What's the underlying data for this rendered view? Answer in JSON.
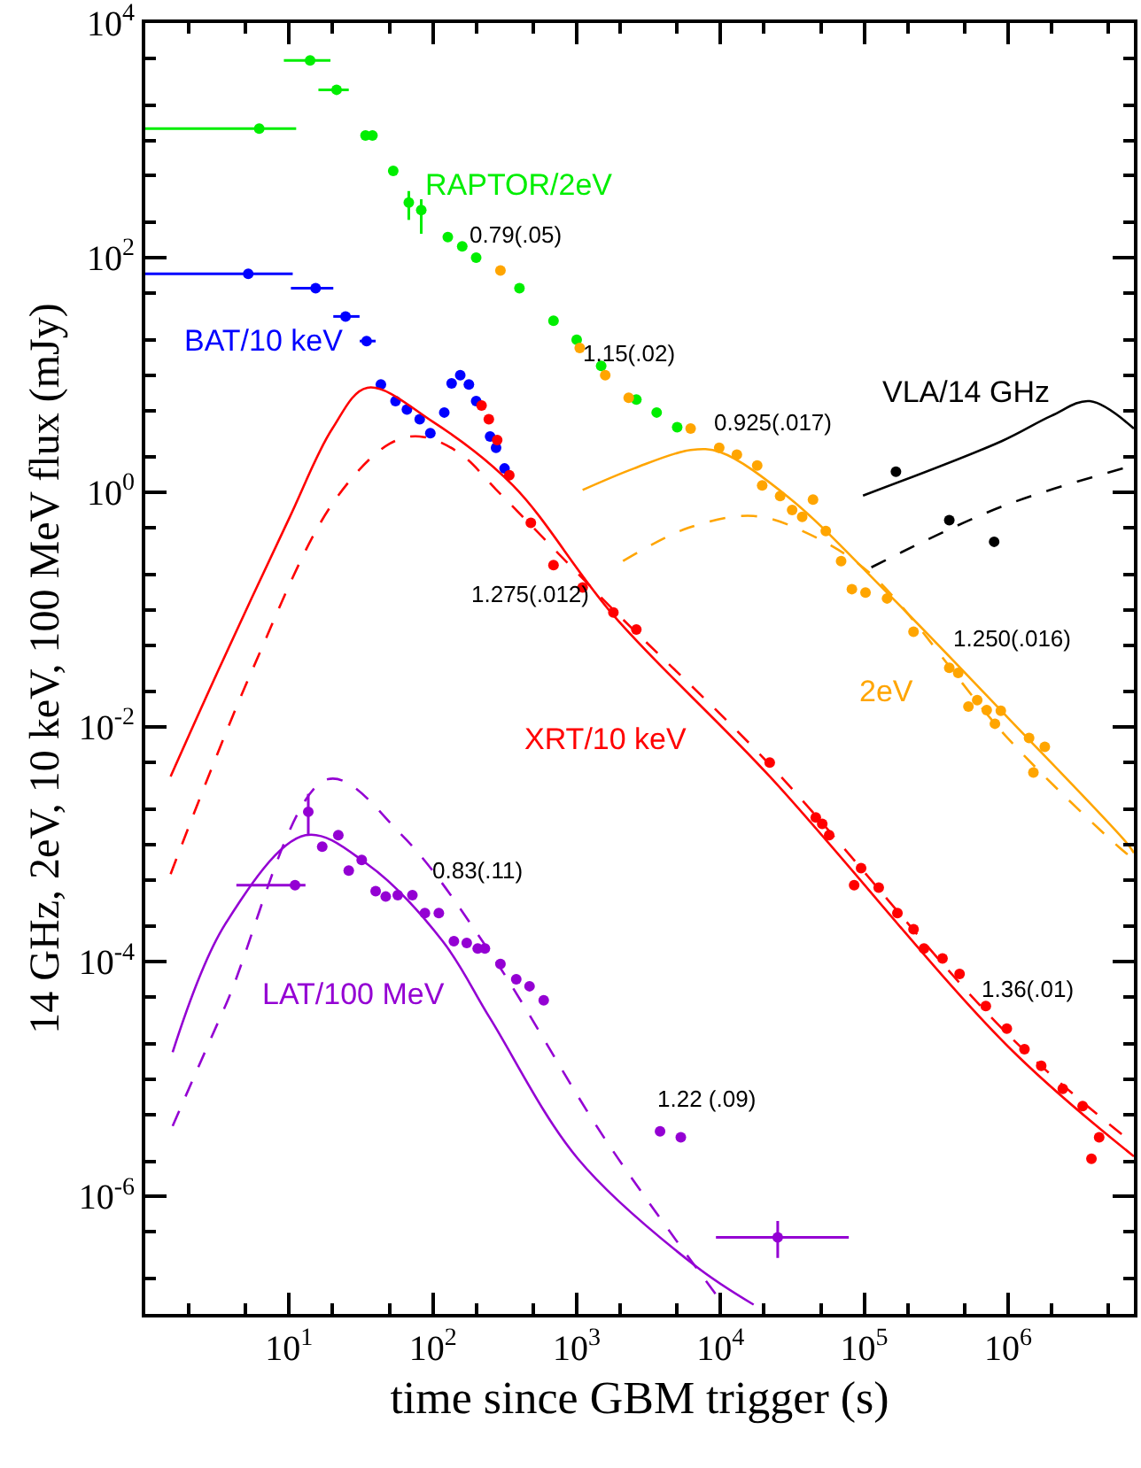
{
  "chart_data": {
    "type": "scatter",
    "xlabel": "time since GBM trigger (s)",
    "ylabel": "14 GHz, 2eV, 10 keV, 100 MeV flux (mJy)",
    "log": "xy",
    "grid": false,
    "legend": "left",
    "marker": "circle",
    "xlim": [
      1,
      7500000
    ],
    "ylim": [
      1e-07,
      10000
    ],
    "xticks": [
      {
        "value": 10,
        "label": "10$^{1}$"
      },
      {
        "value": 100,
        "label": "10$^{2}$"
      },
      {
        "value": 1000,
        "label": "10$^{3}$"
      },
      {
        "value": 10000,
        "label": "10$^{4}$"
      },
      {
        "value": 100000,
        "label": "10$^{5}$"
      },
      {
        "value": 1000000,
        "label": "10$^{6}$"
      }
    ],
    "yticks": [
      {
        "value": 1e-06,
        "label": "10$^{-6}$"
      },
      {
        "value": 0.0001,
        "label": "10$^{-4}$"
      },
      {
        "value": 0.01,
        "label": "10$^{-2}$"
      },
      {
        "value": 1,
        "label": "10$^{0}$"
      },
      {
        "value": 100,
        "label": "10$^{2}$"
      },
      {
        "value": 10000,
        "label": "10$^{4}$"
      }
    ],
    "series": [
      {
        "name": "RAPTOR/2eV",
        "color": "#00ee00",
        "x": [
          6.2,
          14,
          21.4,
          34,
          38,
          53,
          68,
          83,
          127,
          160,
          200,
          295,
          400,
          690,
          1000,
          1480,
          2600,
          3600,
          5000
        ],
        "values": [
          1260,
          4800,
          2700,
          1100,
          1100,
          550,
          295,
          255,
          150,
          125,
          100,
          null,
          55,
          29,
          20,
          12,
          6.2,
          4.8,
          3.6
        ],
        "xerrors": [
          [
            1,
            11.2
          ],
          [
            9.2,
            19.4
          ],
          [
            16,
            26
          ],
          null,
          null,
          null,
          null,
          null,
          null,
          null,
          null,
          null,
          null,
          null,
          null,
          null,
          null,
          null,
          null
        ],
        "errors": [
          null,
          null,
          null,
          null,
          null,
          null,
          [
            210,
            370
          ],
          [
            160,
            315
          ],
          null,
          null,
          null,
          null,
          null,
          null,
          null,
          null,
          null,
          null,
          null
        ]
      },
      {
        "name": "BAT/10 keV",
        "color": "#0000ff",
        "x": [
          5.2,
          15.3,
          24.7,
          34.6,
          43.5,
          55,
          66,
          81,
          96,
          120,
          135,
          155,
          178,
          200,
          250,
          275,
          315
        ],
        "values": [
          73,
          55,
          31.6,
          19.5,
          8.3,
          6,
          5.1,
          4.2,
          3.2,
          4.8,
          8.5,
          10,
          8.3,
          6,
          3,
          2.4,
          1.6
        ],
        "xerrors": [
          [
            1,
            10.6
          ],
          [
            10.3,
            20.3
          ],
          [
            20.3,
            30.9
          ],
          [
            31,
            40
          ],
          null,
          null,
          null,
          null,
          null,
          null,
          null,
          null,
          null,
          null,
          null,
          null,
          null
        ]
      },
      {
        "name": "XRT/10 keV",
        "color": "#ff0000",
        "x": [
          218,
          245,
          280,
          340,
          480,
          690,
          1100,
          1800,
          2600,
          22000,
          46000,
          51000,
          57000,
          85000,
          95000,
          126000,
          170000,
          220000,
          260000,
          350000,
          460000,
          700000,
          980000,
          1300000,
          1700000,
          2400000,
          3300000,
          3800000,
          4300000
        ],
        "values": [
          5.5,
          4.2,
          2.8,
          1.4,
          0.55,
          0.24,
          0.155,
          0.095,
          0.068,
          0.005,
          0.0017,
          0.0015,
          0.0012,
          0.00045,
          0.00063,
          0.00043,
          0.00026,
          0.00019,
          0.00013,
          0.000107,
          7.9e-05,
          4.2e-05,
          2.7e-05,
          1.8e-05,
          1.3e-05,
          8.3e-06,
          5.9e-06,
          2.1e-06,
          3.2e-06
        ]
      },
      {
        "name": "2eV",
        "color": "#ffa500",
        "x": [
          295,
          1050,
          1580,
          2300,
          6200,
          9800,
          13000,
          18000,
          19500,
          26000,
          31500,
          37000,
          44000,
          54000,
          69000,
          82000,
          102000,
          144000,
          220000,
          390000,
          450000,
          530000,
          610000,
          710000,
          810000,
          890000,
          1400000,
          1500000,
          1800000
        ],
        "values": [
          78,
          17,
          10,
          6.4,
          3.5,
          2.4,
          2.1,
          1.7,
          1.15,
          0.93,
          0.71,
          0.62,
          0.87,
          0.47,
          0.26,
          0.15,
          0.14,
          0.125,
          0.065,
          0.032,
          0.029,
          0.015,
          0.017,
          0.014,
          0.0107,
          0.0138,
          0.0081,
          0.0041,
          0.0068
        ]
      },
      {
        "name": "VLA/14 GHz",
        "color": "#000000",
        "x": [
          166000,
          390000,
          800000
        ],
        "values": [
          1.5,
          0.58,
          0.38
        ]
      },
      {
        "name": "LAT/100 MeV",
        "color": "#9400d3",
        "x": [
          11,
          13.6,
          17,
          22,
          26,
          32,
          40,
          47,
          57,
          72,
          88,
          110,
          140,
          172,
          205,
          230,
          295,
          380,
          470,
          590,
          3800,
          5300,
          25000
        ],
        "values": [
          0.00045,
          0.0019,
          0.00096,
          0.0012,
          0.0006,
          0.00074,
          0.0004,
          0.00036,
          0.00037,
          0.00037,
          0.00026,
          0.00026,
          0.00015,
          0.000145,
          0.00013,
          0.00013,
          9.6e-05,
          7.1e-05,
          6.2e-05,
          4.7e-05,
          3.6e-06,
          3.2e-06,
          4.5e-07
        ],
        "xerrors": [
          [
            4.3,
            13
          ],
          null,
          null,
          null,
          null,
          null,
          null,
          null,
          null,
          null,
          null,
          null,
          null,
          null,
          null,
          null,
          null,
          null,
          null,
          null,
          null,
          null,
          [
            9300,
            78000
          ]
        ],
        "errors": [
          null,
          [
            0.0012,
            0.0027
          ],
          null,
          null,
          null,
          null,
          null,
          null,
          null,
          null,
          null,
          null,
          null,
          null,
          null,
          null,
          null,
          null,
          null,
          null,
          null,
          null,
          [
            3e-07,
            6.2e-07
          ]
        ]
      },
      {
        "type": "line",
        "marker": "none",
        "color": "#ff0000",
        "line_style": "solid",
        "x": [
          1.5,
          3.2,
          10,
          20,
          35,
          100,
          360,
          1800,
          22000,
          1000000,
          7500000
        ],
        "values": [
          0.0038,
          0.03,
          0.6,
          3.5,
          7.8,
          4,
          1.15,
          0.09,
          0.0038,
          1.9e-05,
          2.2e-06
        ]
      },
      {
        "type": "line",
        "marker": "none",
        "color": "#ff0000",
        "line_style": "dashed",
        "x": [
          1.5,
          5.5,
          20,
          50,
          81,
          150,
          300,
          1800,
          22000,
          1000000,
          7500000
        ],
        "values": [
          0.00056,
          0.03,
          0.8,
          2.6,
          3,
          2.2,
          0.95,
          0.1,
          0.0048,
          2.4e-05,
          2.8e-06
        ]
      },
      {
        "type": "line",
        "marker": "none",
        "color": "#ffa500",
        "line_style": "solid",
        "x": [
          1100,
          2500,
          6200,
          10000,
          30000,
          140000,
          1000000,
          6600000,
          7500000
        ],
        "values": [
          1.05,
          1.6,
          2.3,
          2.2,
          0.9,
          0.145,
          0.012,
          0.00105,
          0.00085
        ]
      },
      {
        "type": "line",
        "marker": "none",
        "color": "#ffa500",
        "line_style": "dashed",
        "x": [
          2100,
          6000,
          17000,
          40000,
          112000,
          1000000,
          5900000,
          7500000
        ],
        "values": [
          0.26,
          0.5,
          0.63,
          0.45,
          0.2,
          0.008,
          0.00095,
          0.00075
        ]
      },
      {
        "type": "line",
        "marker": "none",
        "color": "#000000",
        "line_style": "solid",
        "x": [
          98000,
          910000,
          2000000,
          3700000,
          7500000
        ],
        "values": [
          0.94,
          2.75,
          4.5,
          6,
          3.5
        ]
      },
      {
        "type": "line",
        "marker": "none",
        "color": "#000000",
        "line_style": "dashed",
        "x": [
          112000,
          910000,
          7500000
        ],
        "values": [
          0.23,
          0.76,
          1.7
        ]
      },
      {
        "type": "line",
        "marker": "none",
        "color": "#9400d3",
        "line_style": "solid",
        "x": [
          1.55,
          3.6,
          13,
          35,
          117,
          250,
          1020,
          6600,
          17000
        ],
        "values": [
          1.7e-05,
          0.00021,
          0.0012,
          0.00068,
          0.00015,
          3.3e-05,
          2.1e-06,
          2.6e-07,
          1.2e-07
        ]
      },
      {
        "type": "line",
        "marker": "none",
        "color": "#9400d3",
        "line_style": "dashed",
        "x": [
          1.55,
          3.6,
          18.6,
          61,
          250,
          1600,
          10000
        ],
        "values": [
          4e-06,
          4.2e-05,
          0.0036,
          0.0012,
          0.00012,
          3e-06,
          1.3e-07
        ]
      }
    ],
    "annotations": [
      "0.79(.05)",
      "1.15(.02)",
      "0.925(.017)",
      "1.275(.012)",
      "1.250(.016)",
      "1.36(.01)",
      "0.83(.11)",
      "1.22 (.09)"
    ]
  }
}
